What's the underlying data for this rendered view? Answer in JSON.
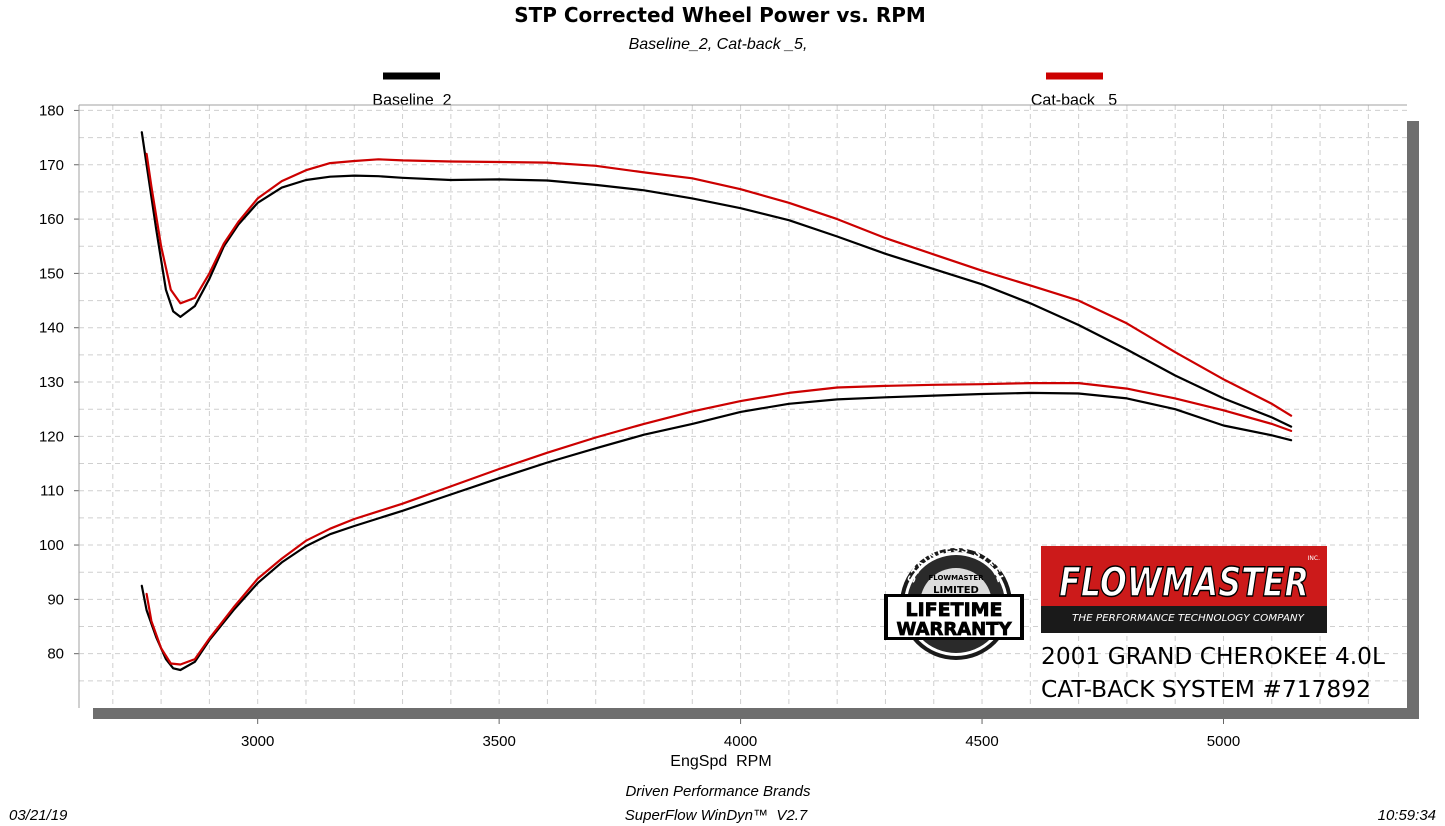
{
  "chart_data": {
    "type": "line",
    "title": "STP Corrected Wheel Power vs. RPM",
    "subtitle": "Baseline_2, Cat-back _5,",
    "xlabel": "EngSpd  RPM",
    "ylabel": "",
    "xlim": [
      2630,
      5380
    ],
    "ylim": [
      70,
      181
    ],
    "x_ticks": [
      "3000",
      "3500",
      "4000",
      "4500",
      "5000"
    ],
    "y_ticks": [
      "180",
      "170",
      "160",
      "150",
      "140",
      "130",
      "120",
      "110",
      "100",
      "90",
      "80"
    ],
    "grid": true,
    "legend_position": "top",
    "series": [
      {
        "name": "Baseline_2",
        "color": "#000000",
        "group": "upper",
        "points": [
          [
            2760,
            176
          ],
          [
            2770,
            170
          ],
          [
            2790,
            158
          ],
          [
            2810,
            147
          ],
          [
            2825,
            143
          ],
          [
            2840,
            142
          ],
          [
            2870,
            144
          ],
          [
            2900,
            149
          ],
          [
            2930,
            155
          ],
          [
            2960,
            159
          ],
          [
            3000,
            163
          ],
          [
            3050,
            165.8
          ],
          [
            3100,
            167.2
          ],
          [
            3150,
            167.8
          ],
          [
            3200,
            168
          ],
          [
            3250,
            167.9
          ],
          [
            3300,
            167.6
          ],
          [
            3400,
            167.2
          ],
          [
            3500,
            167.3
          ],
          [
            3600,
            167.1
          ],
          [
            3700,
            166.3
          ],
          [
            3800,
            165.3
          ],
          [
            3900,
            163.8
          ],
          [
            4000,
            162
          ],
          [
            4100,
            159.8
          ],
          [
            4200,
            156.8
          ],
          [
            4300,
            153.6
          ],
          [
            4400,
            150.8
          ],
          [
            4500,
            148
          ],
          [
            4600,
            144.5
          ],
          [
            4700,
            140.5
          ],
          [
            4800,
            136
          ],
          [
            4900,
            131.2
          ],
          [
            5000,
            127
          ],
          [
            5100,
            123.5
          ],
          [
            5140,
            121.8
          ]
        ]
      },
      {
        "name": "Cat-back _5",
        "color": "#cc0000",
        "group": "upper",
        "points": [
          [
            2770,
            172
          ],
          [
            2780,
            166
          ],
          [
            2800,
            155
          ],
          [
            2820,
            147
          ],
          [
            2840,
            144.5
          ],
          [
            2870,
            145.5
          ],
          [
            2900,
            150
          ],
          [
            2930,
            155.5
          ],
          [
            2960,
            159.5
          ],
          [
            3000,
            163.8
          ],
          [
            3050,
            167
          ],
          [
            3100,
            169
          ],
          [
            3150,
            170.3
          ],
          [
            3200,
            170.7
          ],
          [
            3250,
            171
          ],
          [
            3300,
            170.8
          ],
          [
            3400,
            170.6
          ],
          [
            3500,
            170.5
          ],
          [
            3600,
            170.4
          ],
          [
            3700,
            169.8
          ],
          [
            3800,
            168.6
          ],
          [
            3900,
            167.5
          ],
          [
            4000,
            165.5
          ],
          [
            4100,
            163
          ],
          [
            4200,
            160
          ],
          [
            4300,
            156.5
          ],
          [
            4400,
            153.5
          ],
          [
            4500,
            150.5
          ],
          [
            4600,
            147.8
          ],
          [
            4700,
            145
          ],
          [
            4800,
            140.8
          ],
          [
            4900,
            135.5
          ],
          [
            5000,
            130.5
          ],
          [
            5100,
            126
          ],
          [
            5140,
            123.8
          ]
        ]
      },
      {
        "name": "Baseline_2",
        "color": "#000000",
        "group": "lower",
        "points": [
          [
            2760,
            92.5
          ],
          [
            2770,
            88
          ],
          [
            2790,
            83
          ],
          [
            2810,
            79
          ],
          [
            2825,
            77.3
          ],
          [
            2840,
            77
          ],
          [
            2870,
            78.5
          ],
          [
            2900,
            82.5
          ],
          [
            2950,
            88
          ],
          [
            3000,
            93
          ],
          [
            3050,
            96.8
          ],
          [
            3100,
            99.8
          ],
          [
            3150,
            102
          ],
          [
            3200,
            103.5
          ],
          [
            3300,
            106.3
          ],
          [
            3400,
            109.3
          ],
          [
            3500,
            112.3
          ],
          [
            3600,
            115.2
          ],
          [
            3700,
            117.8
          ],
          [
            3800,
            120.3
          ],
          [
            3900,
            122.3
          ],
          [
            4000,
            124.5
          ],
          [
            4100,
            126
          ],
          [
            4200,
            126.8
          ],
          [
            4300,
            127.2
          ],
          [
            4400,
            127.5
          ],
          [
            4500,
            127.8
          ],
          [
            4600,
            128
          ],
          [
            4700,
            127.9
          ],
          [
            4800,
            127
          ],
          [
            4900,
            125
          ],
          [
            5000,
            122
          ],
          [
            5100,
            120.2
          ],
          [
            5140,
            119.3
          ]
        ]
      },
      {
        "name": "Cat-back _5",
        "color": "#cc0000",
        "group": "lower",
        "points": [
          [
            2770,
            91
          ],
          [
            2780,
            86
          ],
          [
            2800,
            81
          ],
          [
            2820,
            78.2
          ],
          [
            2840,
            78
          ],
          [
            2870,
            79
          ],
          [
            2900,
            82.8
          ],
          [
            2950,
            88.5
          ],
          [
            3000,
            93.8
          ],
          [
            3050,
            97.5
          ],
          [
            3100,
            100.8
          ],
          [
            3150,
            103
          ],
          [
            3200,
            104.8
          ],
          [
            3300,
            107.6
          ],
          [
            3400,
            110.8
          ],
          [
            3500,
            114
          ],
          [
            3600,
            117
          ],
          [
            3700,
            119.8
          ],
          [
            3800,
            122.3
          ],
          [
            3900,
            124.6
          ],
          [
            4000,
            126.5
          ],
          [
            4100,
            128
          ],
          [
            4200,
            129
          ],
          [
            4300,
            129.3
          ],
          [
            4400,
            129.5
          ],
          [
            4500,
            129.6
          ],
          [
            4600,
            129.8
          ],
          [
            4700,
            129.8
          ],
          [
            4800,
            128.8
          ],
          [
            4900,
            127
          ],
          [
            5000,
            124.8
          ],
          [
            5100,
            122.3
          ],
          [
            5140,
            121
          ]
        ]
      }
    ]
  },
  "footer": {
    "date": "03/21/19",
    "company": "Driven Performance Brands",
    "software": "SuperFlow WinDyn™  V2.7",
    "time": "10:59:34"
  },
  "branding": {
    "logo_text": "FLOWMASTER",
    "logo_inc": "INC.",
    "logo_tagline": "THE PERFORMANCE TECHNOLOGY COMPANY",
    "logo_color": "#cc1a1a",
    "badge_arc_top": "STAINLESS STEEL",
    "badge_small": "FLOWMASTER",
    "badge_limited": "LIMITED",
    "badge_line1": "LIFETIME",
    "badge_line2": "WARRANTY",
    "vehicle": "2001 GRAND CHEROKEE 4.0L",
    "system": "CAT-BACK SYSTEM #717892"
  }
}
